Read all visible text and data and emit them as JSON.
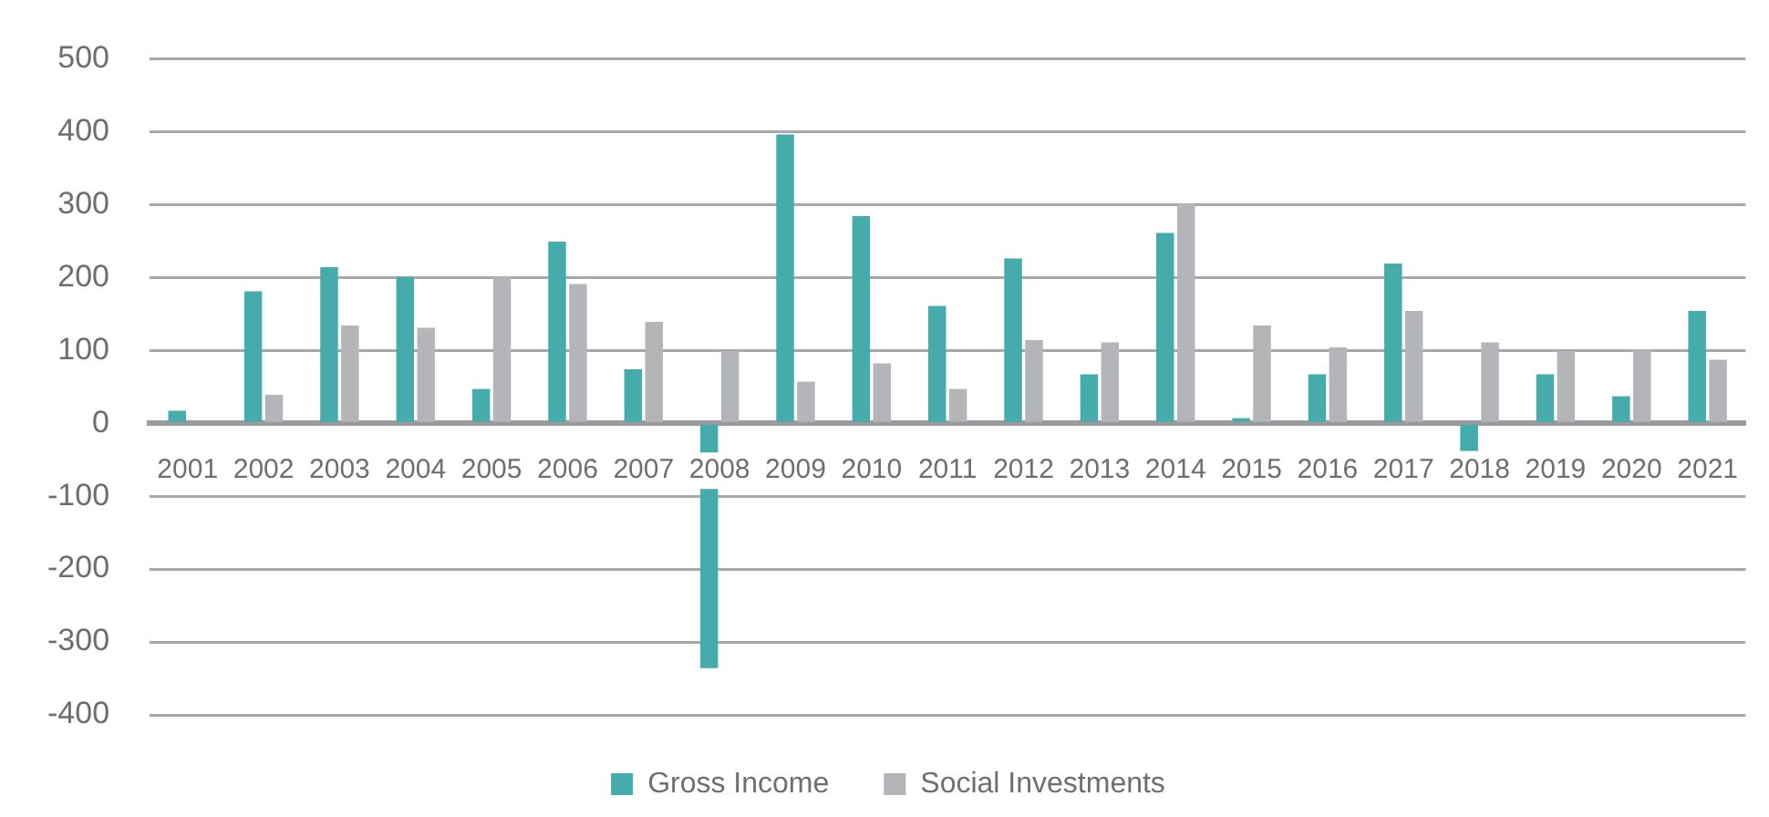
{
  "chart_data": {
    "type": "bar",
    "categories": [
      "2001",
      "2002",
      "2003",
      "2004",
      "2005",
      "2006",
      "2007",
      "2008",
      "2009",
      "2010",
      "2011",
      "2012",
      "2013",
      "2014",
      "2015",
      "2016",
      "2017",
      "2018",
      "2019",
      "2020",
      "2021"
    ],
    "series": [
      {
        "name": "Gross Income",
        "color": "#45abab",
        "values": [
          17,
          181,
          214,
          201,
          47,
          249,
          74,
          -336,
          396,
          284,
          161,
          226,
          67,
          261,
          7,
          67,
          219,
          -38,
          67,
          37,
          154
        ]
      },
      {
        "name": "Social Investments",
        "color": "#b4b5b8",
        "values": [
          null,
          39,
          134,
          131,
          201,
          191,
          139,
          99,
          57,
          82,
          47,
          114,
          111,
          301,
          134,
          104,
          154,
          111,
          99,
          101,
          87
        ]
      }
    ],
    "ylim": [
      -400,
      500
    ],
    "yticks": [
      -400,
      -300,
      -200,
      -100,
      0,
      100,
      200,
      300,
      400,
      500
    ],
    "grid": "y",
    "legend": "bottom"
  }
}
